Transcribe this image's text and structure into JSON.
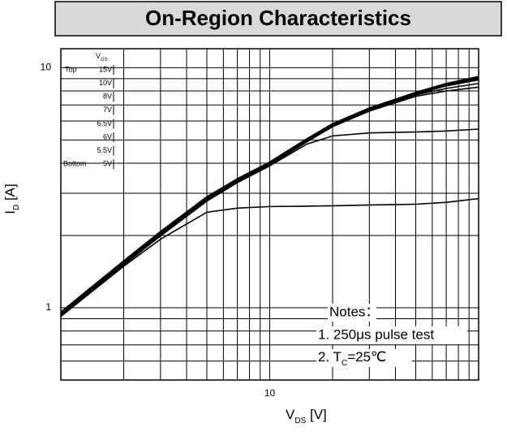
{
  "chart_data": {
    "type": "line",
    "title": "On-Region Characteristics",
    "x_label": {
      "main": "V",
      "sub": "DS",
      "rest": " [V]"
    },
    "y_label": {
      "main": "I",
      "sub": "D",
      "rest": " [A]"
    },
    "log_x": true,
    "log_y": true,
    "grid": true,
    "xlim": [
      1,
      100
    ],
    "ylim": [
      0.5,
      12
    ],
    "xticks": [
      10
    ],
    "yticks": [
      1,
      10
    ],
    "xminor": [
      2,
      3,
      4,
      5,
      6,
      7,
      8,
      9,
      20,
      30,
      40,
      50,
      60,
      70,
      80,
      90
    ],
    "yminor": [
      0.6,
      0.7,
      0.8,
      0.9,
      2,
      3,
      4,
      5,
      6,
      7,
      8,
      9
    ],
    "legend_title": {
      "main": "V",
      "sub": "GS"
    },
    "legend_top": "Top",
    "legend_bottom": "Bottom",
    "x": [
      1,
      2,
      3,
      5,
      7,
      10,
      15,
      20,
      30,
      50,
      70,
      100
    ],
    "series": [
      {
        "name": "15V",
        "color": "#000000",
        "values": [
          0.96,
          1.57,
          2.08,
          2.9,
          3.45,
          4.05,
          5.05,
          5.85,
          6.8,
          7.9,
          8.6,
          9.2
        ]
      },
      {
        "name": "10V",
        "color": "#000000",
        "values": [
          0.96,
          1.56,
          2.07,
          2.88,
          3.43,
          4.03,
          5.02,
          5.8,
          6.75,
          7.85,
          8.5,
          9.1
        ]
      },
      {
        "name": "8V",
        "color": "#000000",
        "values": [
          0.95,
          1.55,
          2.05,
          2.86,
          3.4,
          4.0,
          5.0,
          5.78,
          6.7,
          7.8,
          8.45,
          9.0
        ]
      },
      {
        "name": "7V",
        "color": "#000000",
        "values": [
          0.95,
          1.54,
          2.04,
          2.84,
          3.38,
          3.97,
          4.97,
          5.75,
          6.68,
          7.75,
          8.4,
          8.9
        ]
      },
      {
        "name": "6.5V",
        "color": "#000000",
        "values": [
          0.94,
          1.53,
          2.02,
          2.82,
          3.36,
          3.95,
          4.95,
          5.72,
          6.65,
          7.7,
          8.2,
          8.6
        ]
      },
      {
        "name": "6V",
        "color": "#000000",
        "values": [
          0.94,
          1.52,
          2.0,
          2.8,
          3.34,
          3.93,
          4.9,
          5.68,
          6.6,
          7.6,
          8.0,
          8.3
        ]
      },
      {
        "name": "5.5V",
        "color": "#000000",
        "values": [
          0.93,
          1.51,
          1.99,
          2.78,
          3.32,
          3.9,
          4.8,
          5.2,
          5.35,
          5.4,
          5.45,
          5.55
        ]
      },
      {
        "name": "5V",
        "color": "#000000",
        "values": [
          0.92,
          1.49,
          1.93,
          2.5,
          2.6,
          2.64,
          2.65,
          2.66,
          2.68,
          2.7,
          2.75,
          2.85
        ]
      }
    ],
    "notes": {
      "heading": "Notes：",
      "line1": "1. 250μs pulse test",
      "tc": {
        "main": "2. T",
        "sub": "C",
        "rest": "=25℃"
      }
    }
  }
}
